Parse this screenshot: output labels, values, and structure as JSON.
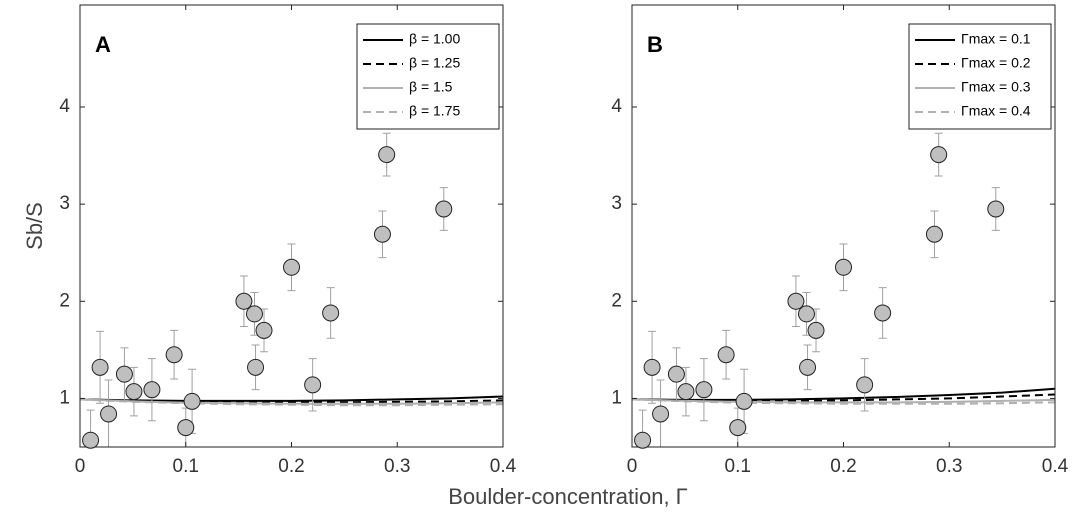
{
  "xlabel": "Boulder-concentration, Γ",
  "chart_data": [
    {
      "type": "scatter",
      "annotation": "A",
      "ylabel": "Sb/S",
      "xlim": [
        0,
        0.4
      ],
      "ylim": [
        0.5,
        5.05
      ],
      "xticks": [
        0,
        0.1,
        0.2,
        0.3,
        0.4
      ],
      "yticks": [
        1,
        2,
        3,
        4
      ],
      "legend": "upper right",
      "points": {
        "color": "#bfbfbf",
        "error_color": "#a0a0a0",
        "x": [
          0.01,
          0.019,
          0.027,
          0.042,
          0.051,
          0.068,
          0.089,
          0.1,
          0.106,
          0.155,
          0.165,
          0.166,
          0.174,
          0.2,
          0.22,
          0.237,
          0.286,
          0.29,
          0.344
        ],
        "values": [
          0.57,
          1.32,
          0.84,
          1.25,
          1.07,
          1.09,
          1.45,
          0.7,
          0.97,
          2.0,
          1.87,
          1.32,
          1.7,
          2.35,
          1.14,
          1.88,
          2.69,
          3.51,
          2.95
        ],
        "errors": [
          0.31,
          0.37,
          0.35,
          0.27,
          0.25,
          0.32,
          0.25,
          0.2,
          0.33,
          0.26,
          0.22,
          0.23,
          0.22,
          0.24,
          0.27,
          0.26,
          0.24,
          0.22,
          0.22
        ]
      },
      "model_x": [
        0,
        0.05,
        0.1,
        0.15,
        0.2,
        0.25,
        0.3,
        0.35,
        0.4
      ],
      "series": [
        {
          "name": "β = 1.00",
          "color": "#000000",
          "dash": false,
          "values": [
            0.99,
            0.98,
            0.975,
            0.975,
            0.975,
            0.98,
            0.99,
            1.0,
            1.02
          ]
        },
        {
          "name": "β = 1.25",
          "color": "#000000",
          "dash": true,
          "values": [
            0.99,
            0.975,
            0.965,
            0.96,
            0.96,
            0.96,
            0.965,
            0.97,
            0.98
          ]
        },
        {
          "name": "β = 1.5",
          "color": "#b0b0b0",
          "dash": false,
          "values": [
            0.99,
            0.97,
            0.955,
            0.95,
            0.945,
            0.945,
            0.945,
            0.95,
            0.96
          ]
        },
        {
          "name": "β = 1.75",
          "color": "#b0b0b0",
          "dash": true,
          "values": [
            0.99,
            0.965,
            0.95,
            0.94,
            0.935,
            0.93,
            0.93,
            0.935,
            0.94
          ]
        }
      ]
    },
    {
      "type": "scatter",
      "annotation": "B",
      "xlim": [
        0,
        0.4
      ],
      "ylim": [
        0.5,
        5.05
      ],
      "xticks": [
        0,
        0.1,
        0.2,
        0.3,
        0.4
      ],
      "yticks": [
        1,
        2,
        3,
        4
      ],
      "legend": "upper right",
      "points": {
        "color": "#bfbfbf",
        "error_color": "#a0a0a0",
        "x": [
          0.01,
          0.019,
          0.027,
          0.042,
          0.051,
          0.068,
          0.089,
          0.1,
          0.106,
          0.155,
          0.165,
          0.166,
          0.174,
          0.2,
          0.22,
          0.237,
          0.286,
          0.29,
          0.344
        ],
        "values": [
          0.57,
          1.32,
          0.84,
          1.25,
          1.07,
          1.09,
          1.45,
          0.7,
          0.97,
          2.0,
          1.87,
          1.32,
          1.7,
          2.35,
          1.14,
          1.88,
          2.69,
          3.51,
          2.95
        ],
        "errors": [
          0.31,
          0.37,
          0.35,
          0.27,
          0.25,
          0.32,
          0.25,
          0.2,
          0.33,
          0.26,
          0.22,
          0.23,
          0.22,
          0.24,
          0.27,
          0.26,
          0.24,
          0.22,
          0.22
        ]
      },
      "model_x": [
        0,
        0.05,
        0.1,
        0.15,
        0.2,
        0.25,
        0.3,
        0.35,
        0.4
      ],
      "series": [
        {
          "name": "Γmax = 0.1",
          "color": "#000000",
          "dash": false,
          "values": [
            0.99,
            0.985,
            0.985,
            0.99,
            1.0,
            1.015,
            1.035,
            1.06,
            1.1
          ]
        },
        {
          "name": "Γmax = 0.2",
          "color": "#000000",
          "dash": true,
          "values": [
            0.99,
            0.98,
            0.975,
            0.975,
            0.98,
            0.99,
            1.0,
            1.02,
            1.04
          ]
        },
        {
          "name": "Γmax = 0.3",
          "color": "#b0b0b0",
          "dash": false,
          "values": [
            0.99,
            0.975,
            0.965,
            0.96,
            0.96,
            0.96,
            0.965,
            0.975,
            0.985
          ]
        },
        {
          "name": "Γmax = 0.4",
          "color": "#b0b0b0",
          "dash": true,
          "values": [
            0.99,
            0.97,
            0.955,
            0.95,
            0.945,
            0.945,
            0.945,
            0.95,
            0.96
          ]
        }
      ]
    }
  ]
}
